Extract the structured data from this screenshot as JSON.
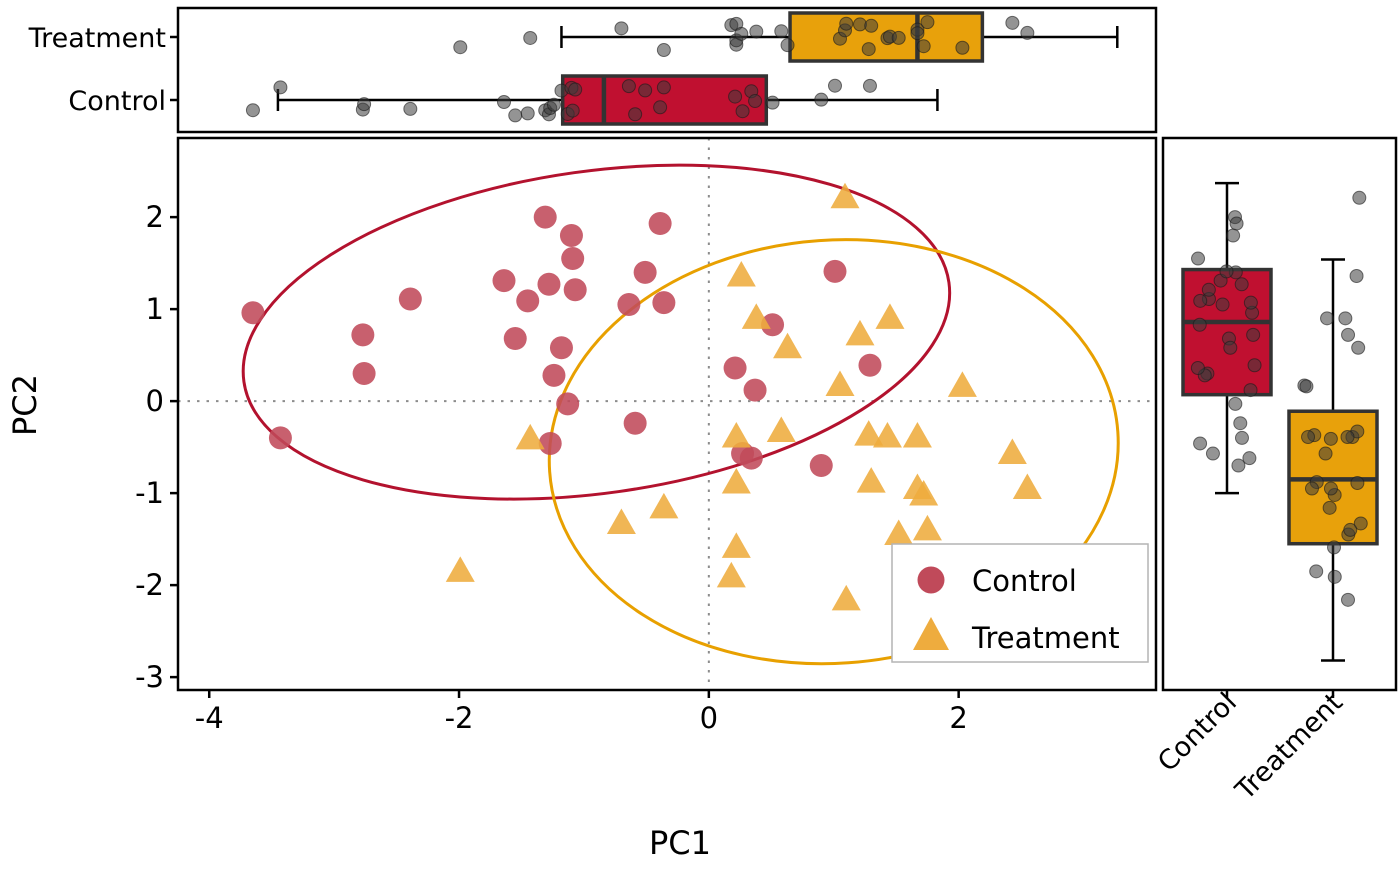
{
  "chart_data": {
    "type": "scatter",
    "title": "",
    "description": "PCA scatter of PC1 vs PC2 with group confidence ellipses, top marginal boxplots of PC1 and right marginal boxplots of PC2 with jittered points",
    "axes": {
      "x_label": "PC1",
      "y_label": "PC2",
      "xlim": [
        -4.25,
        3.58
      ],
      "ylim": [
        -3.14,
        2.86
      ],
      "x_ticks": [
        -4,
        -2,
        0,
        2
      ],
      "y_ticks": [
        2,
        1,
        0,
        -1,
        -2,
        -3
      ],
      "zero_lines": "dotted gray at x=0 and y=0",
      "grid": false
    },
    "legend": {
      "position": "inside lower-right",
      "entries": [
        {
          "label": "Control",
          "marker": "circle",
          "color": "#c04a5a"
        },
        {
          "label": "Treatment",
          "marker": "triangle",
          "color": "#eeac3e"
        }
      ]
    },
    "jitter_point_color": "#3c3c3c",
    "groups": [
      {
        "name": "Control",
        "marker": "circle",
        "point_color": "#c04a5a",
        "box_color": "#c01030",
        "ellipse_color": "#b3122e",
        "points": [
          [
            -3.65,
            0.96
          ],
          [
            -3.43,
            -0.4
          ],
          [
            -2.77,
            0.72
          ],
          [
            -2.76,
            0.3
          ],
          [
            -2.39,
            1.11
          ],
          [
            -1.64,
            1.31
          ],
          [
            -1.55,
            0.68
          ],
          [
            -1.45,
            1.09
          ],
          [
            -1.31,
            2.0
          ],
          [
            -1.28,
            1.27
          ],
          [
            -1.27,
            -0.46
          ],
          [
            -1.24,
            0.28
          ],
          [
            -1.18,
            0.58
          ],
          [
            -1.13,
            -0.03
          ],
          [
            -1.1,
            1.8
          ],
          [
            -1.09,
            1.55
          ],
          [
            -1.07,
            1.21
          ],
          [
            -0.64,
            1.05
          ],
          [
            -0.59,
            -0.24
          ],
          [
            -0.51,
            1.4
          ],
          [
            -0.39,
            1.93
          ],
          [
            -0.36,
            1.07
          ],
          [
            0.21,
            0.36
          ],
          [
            0.27,
            -0.57
          ],
          [
            0.34,
            -0.62
          ],
          [
            0.37,
            0.12
          ],
          [
            0.51,
            0.83
          ],
          [
            0.9,
            -0.7
          ],
          [
            1.01,
            1.41
          ],
          [
            1.29,
            0.39
          ]
        ],
        "ellipse": {
          "cx": -0.9,
          "cy": 0.75,
          "rx": 2.85,
          "ry": 1.75,
          "angle_deg": -8
        },
        "pc1_box": {
          "min": -3.45,
          "q1": -1.17,
          "median": -0.84,
          "q3": 0.46,
          "max": 1.83
        },
        "pc2_box": {
          "min": -1.0,
          "q1": 0.07,
          "median": 0.86,
          "q3": 1.43,
          "max": 2.37
        }
      },
      {
        "name": "Treatment",
        "marker": "triangle",
        "point_color": "#eeac3e",
        "box_color": "#e8a10b",
        "ellipse_color": "#e8a000",
        "points": [
          [
            -1.99,
            -1.85
          ],
          [
            -1.43,
            -0.41
          ],
          [
            -0.7,
            -1.33
          ],
          [
            -0.36,
            -1.16
          ],
          [
            0.18,
            -1.91
          ],
          [
            0.22,
            -0.39
          ],
          [
            0.22,
            -0.89
          ],
          [
            0.22,
            -1.59
          ],
          [
            0.26,
            1.36
          ],
          [
            0.38,
            0.9
          ],
          [
            0.58,
            -0.33
          ],
          [
            0.63,
            0.58
          ],
          [
            1.05,
            0.17
          ],
          [
            1.09,
            2.21
          ],
          [
            1.1,
            -2.16
          ],
          [
            1.21,
            0.72
          ],
          [
            1.28,
            -0.37
          ],
          [
            1.3,
            -0.88
          ],
          [
            1.43,
            -0.39
          ],
          [
            1.45,
            0.9
          ],
          [
            1.52,
            -1.45
          ],
          [
            1.67,
            -0.39
          ],
          [
            1.67,
            -0.95
          ],
          [
            1.72,
            -1.02
          ],
          [
            1.75,
            -1.4
          ],
          [
            2.03,
            0.16
          ],
          [
            2.43,
            -0.57
          ],
          [
            2.55,
            -0.95
          ]
        ],
        "ellipse": {
          "cx": 1.0,
          "cy": -0.55,
          "rx": 2.28,
          "ry": 2.3,
          "angle_deg": -4
        },
        "pc1_box": {
          "min": -1.18,
          "q1": 0.65,
          "median": 1.67,
          "q3": 2.19,
          "max": 3.27
        },
        "pc2_box": {
          "min": -2.82,
          "q1": -1.55,
          "median": -0.85,
          "q3": -0.11,
          "max": 1.54
        }
      }
    ]
  }
}
